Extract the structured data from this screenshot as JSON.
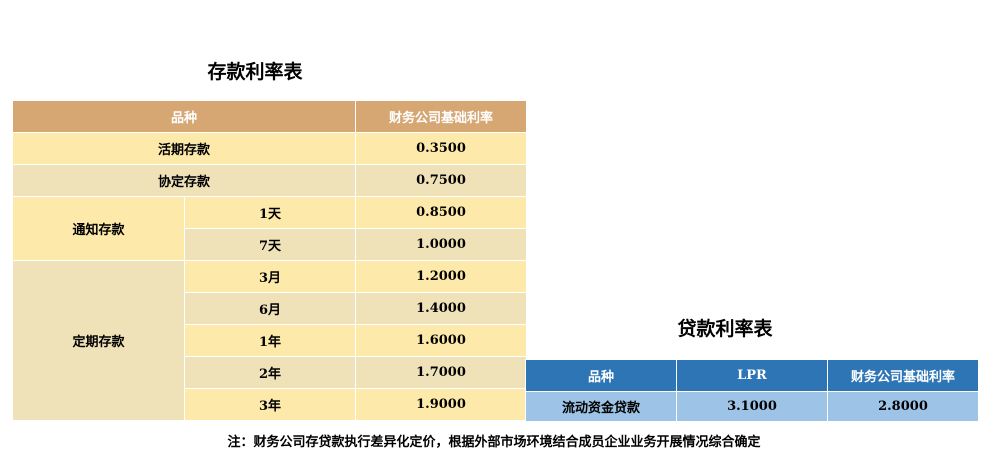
{
  "deposit": {
    "title": "存款利率表",
    "headers": {
      "product": "品种",
      "rate": "财务公司基础利率"
    },
    "rows": {
      "demand": {
        "name": "活期存款",
        "rate": "0.3500"
      },
      "agreement": {
        "name": "协定存款",
        "rate": "0.7500"
      },
      "notice": {
        "name": "通知存款",
        "terms": [
          {
            "term": "1天",
            "rate": "0.8500"
          },
          {
            "term": "7天",
            "rate": "1.0000"
          }
        ]
      },
      "fixed": {
        "name": "定期存款",
        "terms": [
          {
            "term": "3月",
            "rate": "1.2000"
          },
          {
            "term": "6月",
            "rate": "1.4000"
          },
          {
            "term": "1年",
            "rate": "1.6000"
          },
          {
            "term": "2年",
            "rate": "1.7000"
          },
          {
            "term": "3年",
            "rate": "1.9000"
          }
        ]
      }
    }
  },
  "loan": {
    "title": "贷款利率表",
    "headers": {
      "product": "品种",
      "lpr": "LPR",
      "rate": "财务公司基础利率"
    },
    "rows": [
      {
        "name": "流动资金贷款",
        "lpr": "3.1000",
        "rate": "2.8000"
      }
    ]
  },
  "footnote": "注：财务公司存贷款执行差异化定价，根据外部市场环境结合成员企业业务开展情况综合确定",
  "colors": {
    "deposit_header": "#d6a673",
    "deposit_row_light": "#fde9a9",
    "deposit_row_shade": "#efe2b9",
    "loan_header": "#2e75b6",
    "loan_row": "#9dc3e6"
  }
}
